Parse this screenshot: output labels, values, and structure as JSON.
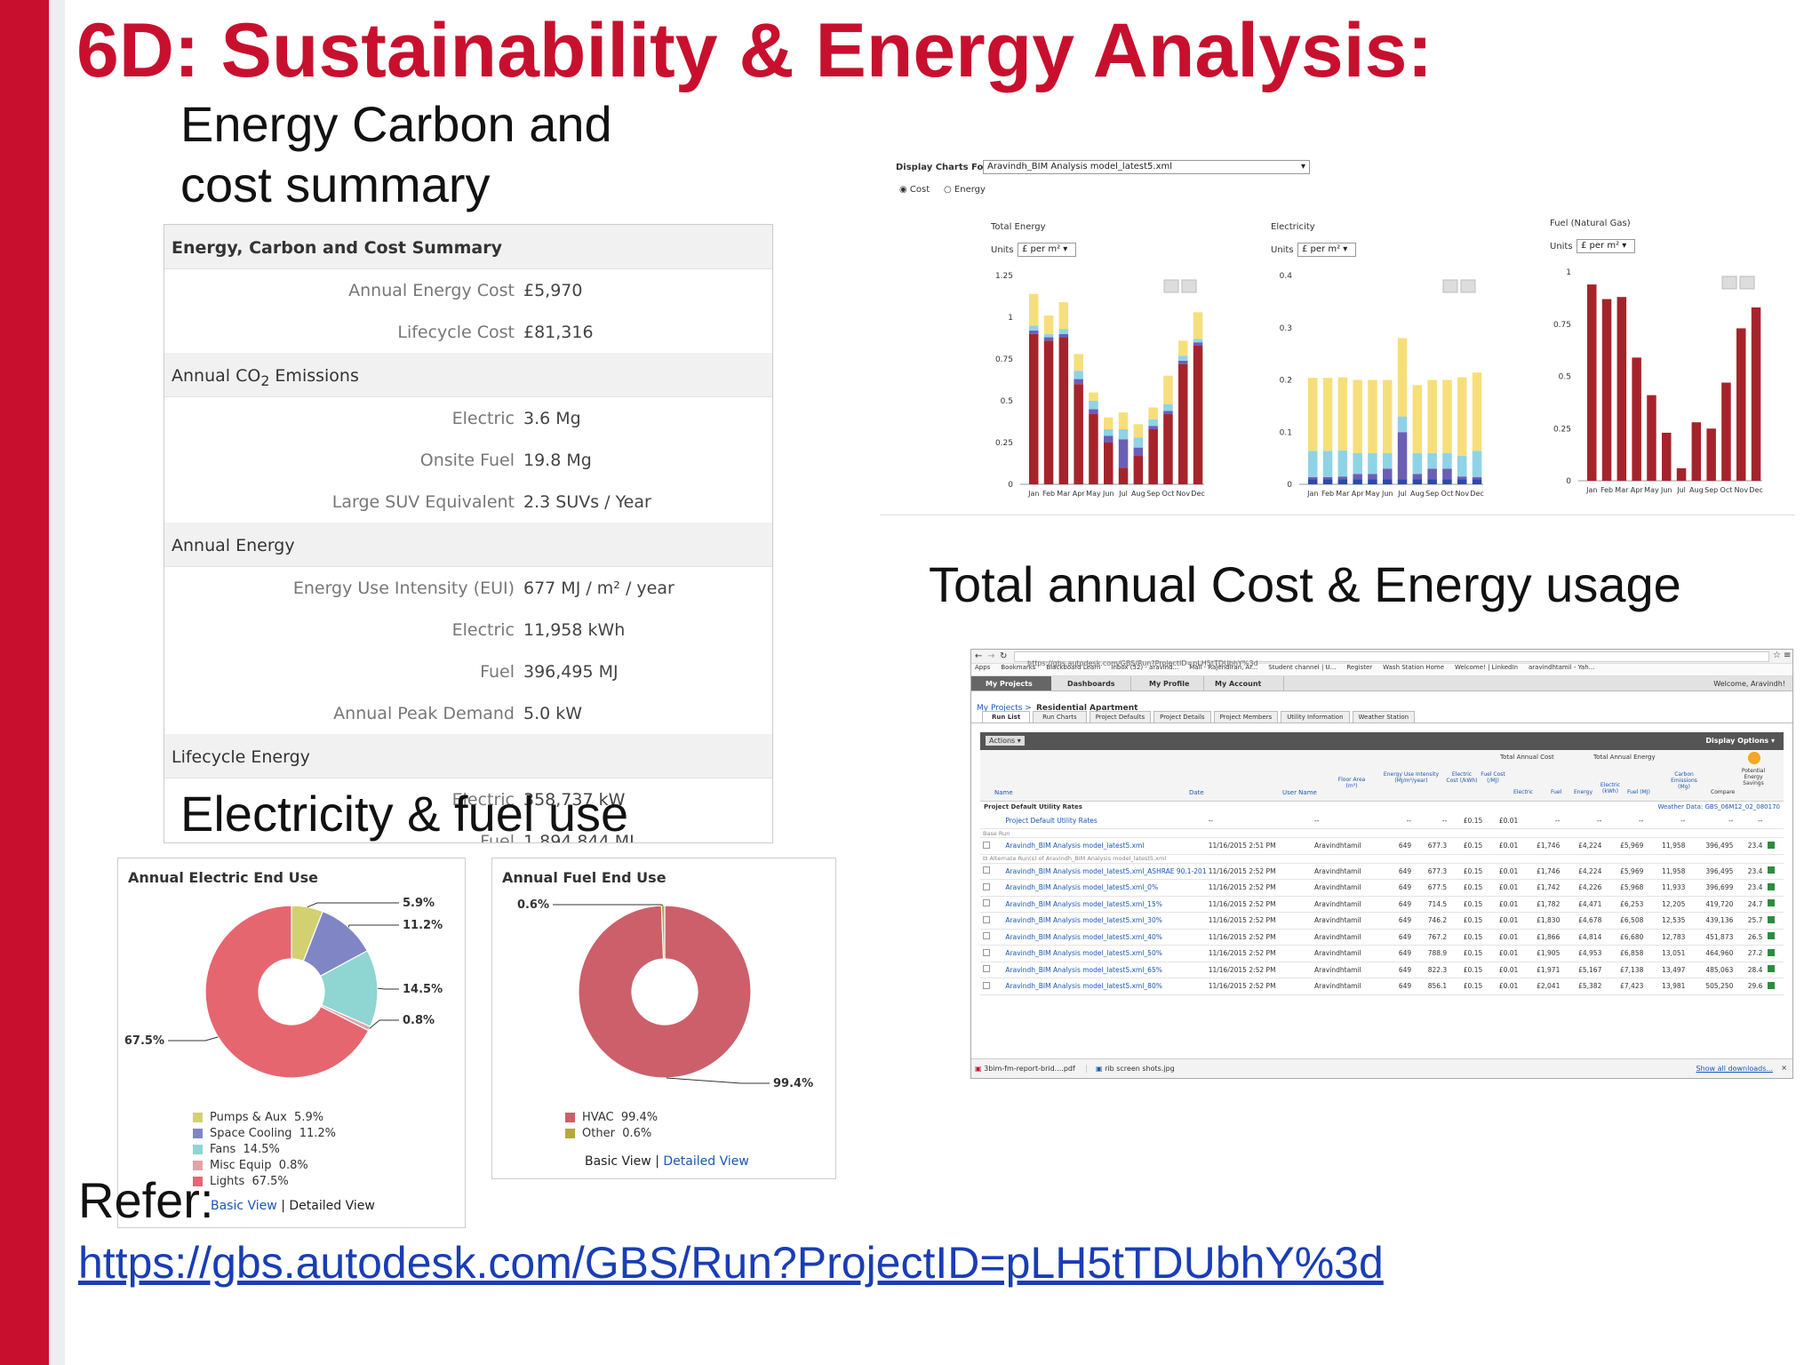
{
  "slide": {
    "title": "6D: Sustainability & Energy Analysis:",
    "subtitle_line1": "Energy Carbon and",
    "subtitle_line2": "cost summary",
    "caption_annual": "Total annual Cost & Energy usage",
    "caption_fuel": "Electricity & fuel use",
    "refer_label": "Refer:",
    "refer_url": "https://gbs.autodesk.com/GBS/Run?ProjectID=pLH5tTDUbhY%3d"
  },
  "summary": {
    "header": "Energy, Carbon and Cost Summary",
    "cost_rows": [
      {
        "label": "Annual Energy Cost",
        "value": "£5,970"
      },
      {
        "label": "Lifecycle Cost",
        "value": "£81,316"
      }
    ],
    "co2_header_pre": "Annual CO",
    "co2_header_sub": "2",
    "co2_header_post": " Emissions",
    "co2_rows": [
      {
        "label": "Electric",
        "value": "3.6 Mg"
      },
      {
        "label": "Onsite Fuel",
        "value": "19.8 Mg"
      },
      {
        "label": "Large SUV Equivalent",
        "value": "2.3 SUVs / Year"
      }
    ],
    "energy_header": "Annual Energy",
    "energy_rows": [
      {
        "label": "Energy Use Intensity (EUI)",
        "value": "677 MJ / m² / year"
      },
      {
        "label": "Electric",
        "value": "11,958 kWh"
      },
      {
        "label": "Fuel",
        "value": "396,495 MJ"
      },
      {
        "label": "Annual Peak Demand",
        "value": "5.0 kW"
      }
    ],
    "lifecycle_header": "Lifecycle Energy",
    "lifecycle_rows": [
      {
        "label": "Electric",
        "value": "358,737 kW"
      },
      {
        "label": "Fuel",
        "value": "1,894,844 MJ"
      }
    ]
  },
  "charts_panel": {
    "display_label": "Display Charts For:",
    "display_value": "Aravindh_BIM Analysis model_latest5.xml",
    "radio_cost": "Cost",
    "radio_energy": "Energy",
    "units_label": "Units",
    "units_value": "£ per m²",
    "months": [
      "Jan",
      "Feb",
      "Mar",
      "Apr",
      "May",
      "Jun",
      "Jul",
      "Aug",
      "Sep",
      "Oct",
      "Nov",
      "Dec"
    ],
    "colors": {
      "red": "#a5242b",
      "purple": "#6b5fb5",
      "cyan": "#8fd3e6",
      "yellow": "#f6df7b",
      "blue": "#2c4aa8"
    }
  },
  "chart_data": [
    {
      "type": "bar",
      "title": "Total Energy",
      "categories": [
        "Jan",
        "Feb",
        "Mar",
        "Apr",
        "May",
        "Jun",
        "Jul",
        "Aug",
        "Sep",
        "Oct",
        "Nov",
        "Dec"
      ],
      "stacked": true,
      "ylim": [
        0,
        1.25
      ],
      "yticks": [
        "0",
        "0.25",
        "0.5",
        "0.75",
        "1",
        "1.25"
      ],
      "series": [
        {
          "color": "#a5242b",
          "values": [
            0.9,
            0.86,
            0.88,
            0.6,
            0.42,
            0.25,
            0.1,
            0.17,
            0.33,
            0.42,
            0.72,
            0.83
          ]
        },
        {
          "color": "#6b5fb5",
          "values": [
            0.02,
            0.02,
            0.02,
            0.03,
            0.03,
            0.04,
            0.17,
            0.05,
            0.02,
            0.02,
            0.02,
            0.02
          ]
        },
        {
          "color": "#8fd3e6",
          "values": [
            0.03,
            0.02,
            0.03,
            0.05,
            0.05,
            0.04,
            0.06,
            0.06,
            0.04,
            0.04,
            0.03,
            0.02
          ]
        },
        {
          "color": "#f6df7b",
          "values": [
            0.19,
            0.11,
            0.16,
            0.1,
            0.05,
            0.07,
            0.1,
            0.08,
            0.07,
            0.17,
            0.09,
            0.16
          ]
        }
      ]
    },
    {
      "type": "bar",
      "title": "Electricity",
      "categories": [
        "Jan",
        "Feb",
        "Mar",
        "Apr",
        "May",
        "Jun",
        "Jul",
        "Aug",
        "Sep",
        "Oct",
        "Nov",
        "Dec"
      ],
      "stacked": true,
      "ylim": [
        0,
        0.4
      ],
      "yticks": [
        "0",
        "0.1",
        "0.2",
        "0.3",
        "0.4"
      ],
      "series": [
        {
          "color": "#2c4aa8",
          "values": [
            0.01,
            0.01,
            0.01,
            0.01,
            0.01,
            0.01,
            0.01,
            0.01,
            0.01,
            0.01,
            0.01,
            0.01
          ]
        },
        {
          "color": "#6b5fb5",
          "values": [
            0.004,
            0.004,
            0.005,
            0.01,
            0.01,
            0.02,
            0.09,
            0.01,
            0.02,
            0.02,
            0.005,
            0.004
          ]
        },
        {
          "color": "#8fd3e6",
          "values": [
            0.05,
            0.05,
            0.05,
            0.04,
            0.04,
            0.03,
            0.03,
            0.04,
            0.03,
            0.03,
            0.04,
            0.05
          ]
        },
        {
          "color": "#f6df7b",
          "values": [
            0.14,
            0.14,
            0.14,
            0.14,
            0.14,
            0.14,
            0.15,
            0.13,
            0.14,
            0.14,
            0.15,
            0.15
          ]
        }
      ]
    },
    {
      "type": "bar",
      "title": "Fuel (Natural Gas)",
      "categories": [
        "Jan",
        "Feb",
        "Mar",
        "Apr",
        "May",
        "Jun",
        "Jul",
        "Aug",
        "Sep",
        "Oct",
        "Nov",
        "Dec"
      ],
      "ylim": [
        0,
        1
      ],
      "yticks": [
        "0",
        "0.25",
        "0.5",
        "0.75",
        "1"
      ],
      "series": [
        {
          "color": "#a5242b",
          "values": [
            0.94,
            0.87,
            0.88,
            0.59,
            0.41,
            0.23,
            0.06,
            0.28,
            0.25,
            0.47,
            0.73,
            0.83
          ]
        }
      ]
    },
    {
      "type": "pie",
      "title": "Annual Electric End Use",
      "labels": [
        "Pumps & Aux",
        "Space Cooling",
        "Fans",
        "Misc Equip",
        "Lights"
      ],
      "values": [
        5.9,
        11.2,
        14.5,
        0.8,
        67.5
      ],
      "display": [
        "5.9%",
        "11.2%",
        "14.5%",
        "0.8%",
        "67.5%"
      ],
      "legend_values": [
        "5.9%",
        "11.2%",
        "14.5%",
        "0.8%",
        "67.5%"
      ],
      "colors": [
        "#d3d071",
        "#8086c5",
        "#8fd5d2",
        "#e0a3a8",
        "#e66670"
      ]
    },
    {
      "type": "pie",
      "title": "Annual Fuel End Use",
      "labels": [
        "HVAC",
        "Other"
      ],
      "values": [
        99.4,
        0.6
      ],
      "display": [
        "99.4%",
        "0.6%"
      ],
      "legend_values": [
        "99.4%",
        "0.6%"
      ],
      "colors": [
        "#cc5f6a",
        "#b7a83b"
      ]
    }
  ],
  "donut_links": {
    "basic": "Basic View",
    "sep": " | ",
    "detailed": "Detailed View"
  },
  "browser": {
    "address": "https://gbs.autodesk.com/GBS/Run?ProjectID=pLH5tTDUbhY%3d",
    "bookmarks": [
      "Apps",
      "Bookmarks",
      "Blackboard Learn",
      "Inbox (52) - aravind...",
      "Mail - Rajendiran, Ar...",
      "Student channel | U...",
      "Register",
      "Wash Station Home",
      "Welcome! | LinkedIn",
      "aravindhtamil - Yah..."
    ],
    "nav": [
      "My Projects",
      "Dashboards",
      "My Profile",
      "My Account"
    ],
    "welcome": "Welcome, Aravindh!",
    "breadcrumb_link": "My Projects >",
    "breadcrumb_current": "Residential Apartment",
    "tabs": [
      "Run List",
      "Run Charts",
      "Project Defaults",
      "Project Details",
      "Project Members",
      "Utility Information",
      "Weather Station"
    ],
    "actions": "Actions",
    "display_options": "Display Options",
    "group_cost": "Total Annual Cost",
    "group_energy": "Total Annual Energy",
    "columns": [
      "Name",
      "Date",
      "User Name",
      "Floor Area (m²)",
      "Energy Use Intensity (MJ/m²/year)",
      "Electric Cost (/kWh)",
      "Fuel Cost (/MJ)",
      "Electric",
      "Fuel",
      "Energy",
      "Electric (kWh)",
      "Fuel (MJ)",
      "Carbon Emissions (Mg)",
      "Compare",
      "Potential Energy Savings"
    ],
    "utility_label": "Project Default Utility Rates",
    "weather": "Weather Data: GBS_06M12_02_080170",
    "base_run": "Base Run",
    "alt_label": "Alternate Run(s) of Aravindh_BIM Analysis model_latest5.xml",
    "rows": [
      [
        "Project Default Utility Rates",
        "--",
        "--",
        "--",
        "--",
        "£0.15",
        "£0.01",
        "--",
        "--",
        "--",
        "--",
        "--",
        "--"
      ],
      [
        "Aravindh_BIM Analysis model_latest5.xml",
        "11/16/2015 2:51 PM",
        "Aravindhtamil",
        "649",
        "677.3",
        "£0.15",
        "£0.01",
        "£1,746",
        "£4,224",
        "£5,969",
        "11,958",
        "396,495",
        "23.4"
      ],
      [
        "Aravindh_BIM Analysis model_latest5.xml_ASHRAE 90.1-2010",
        "11/16/2015 2:52 PM",
        "Aravindhtamil",
        "649",
        "677.3",
        "£0.15",
        "£0.01",
        "£1,746",
        "£4,224",
        "£5,969",
        "11,958",
        "396,495",
        "23.4"
      ],
      [
        "Aravindh_BIM Analysis model_latest5.xml_0%",
        "11/16/2015 2:52 PM",
        "Aravindhtamil",
        "649",
        "677.5",
        "£0.15",
        "£0.01",
        "£1,742",
        "£4,226",
        "£5,968",
        "11,933",
        "396,699",
        "23.4"
      ],
      [
        "Aravindh_BIM Analysis model_latest5.xml_15%",
        "11/16/2015 2:52 PM",
        "Aravindhtamil",
        "649",
        "714.5",
        "£0.15",
        "£0.01",
        "£1,782",
        "£4,471",
        "£6,253",
        "12,205",
        "419,720",
        "24.7"
      ],
      [
        "Aravindh_BIM Analysis model_latest5.xml_30%",
        "11/16/2015 2:52 PM",
        "Aravindhtamil",
        "649",
        "746.2",
        "£0.15",
        "£0.01",
        "£1,830",
        "£4,678",
        "£6,508",
        "12,535",
        "439,136",
        "25.7"
      ],
      [
        "Aravindh_BIM Analysis model_latest5.xml_40%",
        "11/16/2015 2:52 PM",
        "Aravindhtamil",
        "649",
        "767.2",
        "£0.15",
        "£0.01",
        "£1,866",
        "£4,814",
        "£6,680",
        "12,783",
        "451,873",
        "26.5"
      ],
      [
        "Aravindh_BIM Analysis model_latest5.xml_50%",
        "11/16/2015 2:52 PM",
        "Aravindhtamil",
        "649",
        "788.9",
        "£0.15",
        "£0.01",
        "£1,905",
        "£4,953",
        "£6,858",
        "13,051",
        "464,960",
        "27.2"
      ],
      [
        "Aravindh_BIM Analysis model_latest5.xml_65%",
        "11/16/2015 2:52 PM",
        "Aravindhtamil",
        "649",
        "822.3",
        "£0.15",
        "£0.01",
        "£1,971",
        "£5,167",
        "£7,138",
        "13,497",
        "485,063",
        "28.4"
      ],
      [
        "Aravindh_BIM Analysis model_latest5.xml_80%",
        "11/16/2015 2:52 PM",
        "Aravindhtamil",
        "649",
        "856.1",
        "£0.15",
        "£0.01",
        "£2,041",
        "£5,382",
        "£7,423",
        "13,981",
        "505,250",
        "29.6"
      ]
    ],
    "downloads": [
      "3bim-fm-report-brid....pdf",
      "rib screen shots.jpg"
    ],
    "show_downloads": "Show all downloads..."
  }
}
